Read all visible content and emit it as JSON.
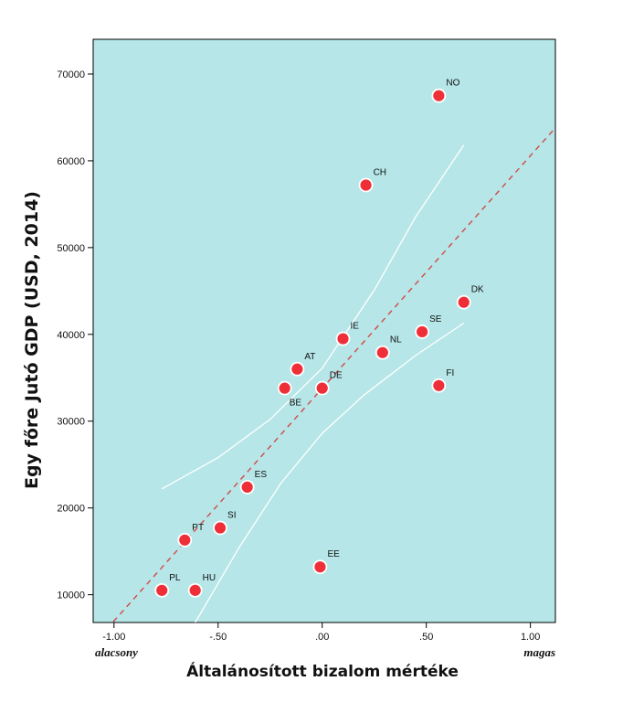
{
  "chart_data": {
    "type": "scatter",
    "title": "",
    "xlabel": "Általánosított bizalom mértéke",
    "ylabel": "Egy főre Jutó GDP (USD, 2014)",
    "x_end_labels": {
      "low": "alacsony",
      "high": "magas"
    },
    "xlim": [
      -1.1,
      1.12
    ],
    "ylim": [
      6800,
      74000
    ],
    "x_ticks": [
      -1.0,
      -0.5,
      0.0,
      0.5,
      1.0
    ],
    "x_tick_labels": [
      "-1.00",
      "-.50",
      ".00",
      ".50",
      "1.00"
    ],
    "y_ticks": [
      10000,
      20000,
      30000,
      40000,
      50000,
      60000,
      70000
    ],
    "y_tick_labels": [
      "10000",
      "20000",
      "30000",
      "40000",
      "50000",
      "60000",
      "70000"
    ],
    "points": [
      {
        "label": "NO",
        "x": 0.56,
        "y": 67500
      },
      {
        "label": "CH",
        "x": 0.21,
        "y": 57200
      },
      {
        "label": "DK",
        "x": 0.68,
        "y": 43700
      },
      {
        "label": "SE",
        "x": 0.48,
        "y": 40300
      },
      {
        "label": "IE",
        "x": 0.1,
        "y": 39500
      },
      {
        "label": "NL",
        "x": 0.29,
        "y": 37900
      },
      {
        "label": "AT",
        "x": -0.12,
        "y": 36000
      },
      {
        "label": "FI",
        "x": 0.56,
        "y": 34100
      },
      {
        "label": "DE",
        "x": 0.0,
        "y": 33800
      },
      {
        "label": "BE",
        "x": -0.18,
        "y": 33800
      },
      {
        "label": "ES",
        "x": -0.36,
        "y": 22400
      },
      {
        "label": "PT",
        "x": -0.66,
        "y": 16300
      },
      {
        "label": "SI",
        "x": -0.49,
        "y": 17700
      },
      {
        "label": "EE",
        "x": -0.01,
        "y": 13200
      },
      {
        "label": "PL",
        "x": -0.77,
        "y": 10500
      },
      {
        "label": "HU",
        "x": -0.61,
        "y": 10500
      }
    ],
    "fit_line": {
      "x": [
        -1.1,
        1.12
      ],
      "y": [
        4300,
        63800
      ]
    },
    "confidence_band": {
      "upper": {
        "x": [
          -0.77,
          -0.5,
          -0.25,
          0.0,
          0.25,
          0.45,
          0.68
        ],
        "y": [
          22200,
          25800,
          30200,
          36100,
          45100,
          53600,
          61800
        ]
      },
      "lower": {
        "x": [
          -0.61,
          -0.4,
          -0.2,
          0.0,
          0.2,
          0.45,
          0.68
        ],
        "y": [
          6800,
          15400,
          22800,
          28600,
          33000,
          37600,
          41300
        ]
      }
    },
    "colors": {
      "plot_bg": "#b6e6e8",
      "point_fill": "#ee2f37",
      "point_stroke": "#ffffff",
      "fit_line": "#d24a46",
      "band": "#ffffff"
    },
    "grid": false
  }
}
